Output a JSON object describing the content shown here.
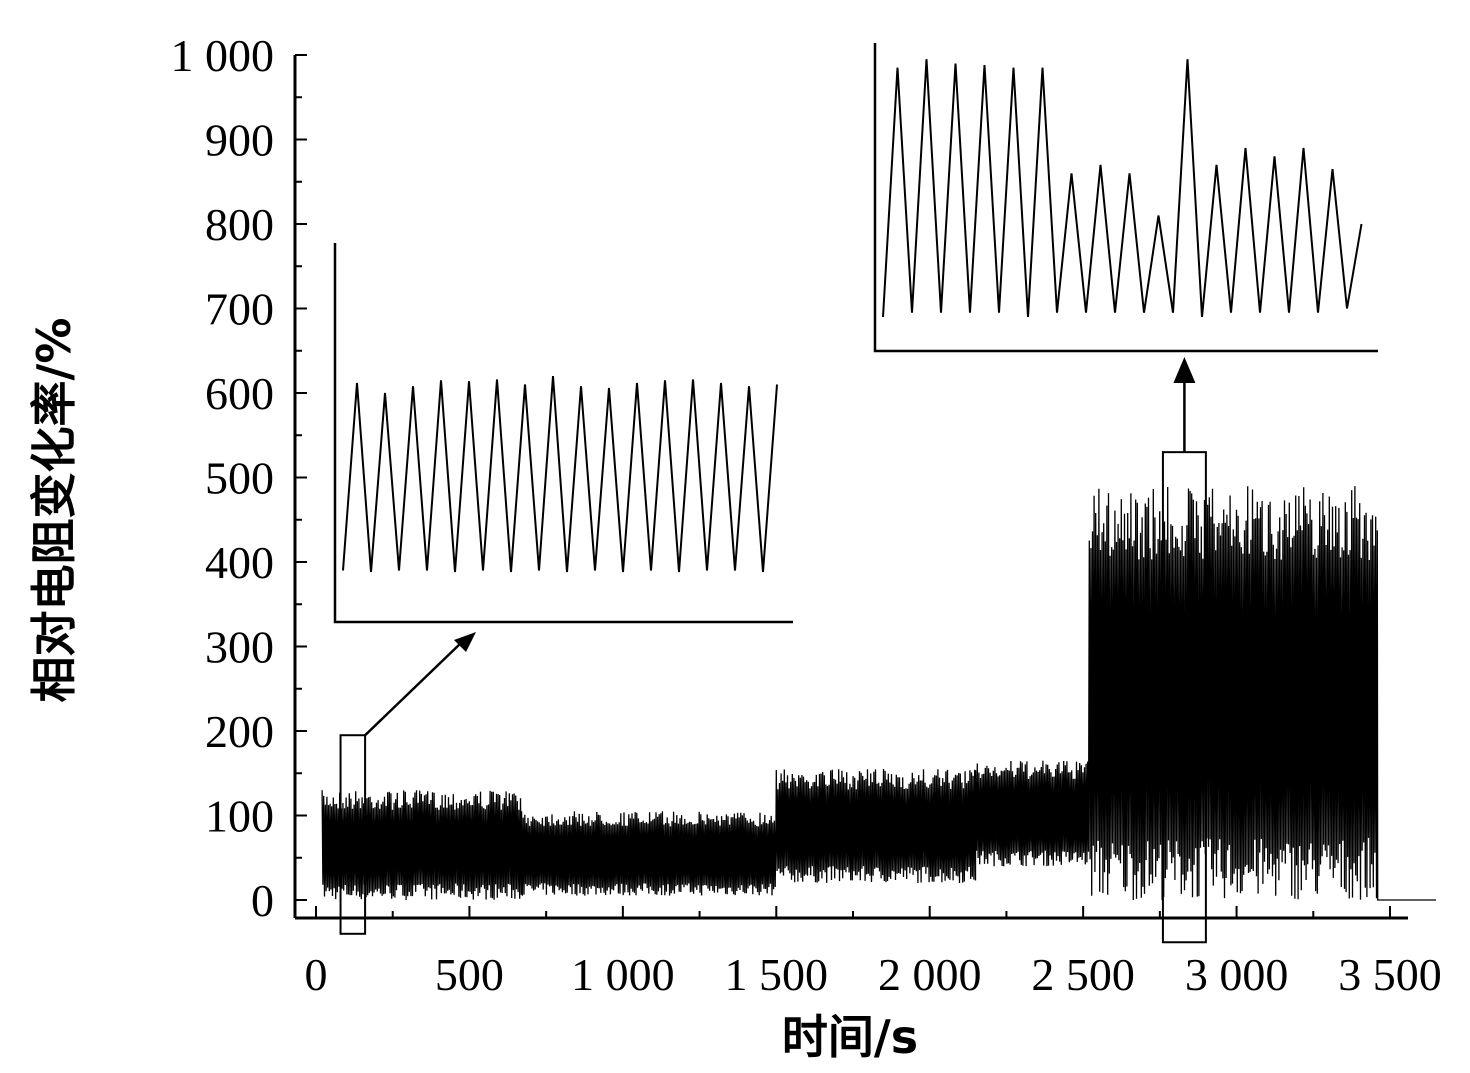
{
  "chart_data": {
    "type": "line",
    "xlabel": "时间/s",
    "ylabel": "相对电阻变化率/%",
    "xlim": [
      0,
      3500
    ],
    "ylim": [
      0,
      1000
    ],
    "x_ticks": [
      {
        "value": 0,
        "label": "0"
      },
      {
        "value": 500,
        "label": "500"
      },
      {
        "value": 1000,
        "label": "1 000"
      },
      {
        "value": 1500,
        "label": "1 500"
      },
      {
        "value": 2000,
        "label": "2 000"
      },
      {
        "value": 2500,
        "label": "2 500"
      },
      {
        "value": 3000,
        "label": "3 000"
      },
      {
        "value": 3500,
        "label": "3 500"
      }
    ],
    "y_ticks": [
      {
        "value": 0,
        "label": "0"
      },
      {
        "value": 100,
        "label": "100"
      },
      {
        "value": 200,
        "label": "200"
      },
      {
        "value": 300,
        "label": "300"
      },
      {
        "value": 400,
        "label": "400"
      },
      {
        "value": 500,
        "label": "500"
      },
      {
        "value": 600,
        "label": "600"
      },
      {
        "value": 700,
        "label": "700"
      },
      {
        "value": 800,
        "label": "800"
      },
      {
        "value": 900,
        "label": "900"
      },
      {
        "value": 1000,
        "label": "1 000"
      }
    ],
    "grid": false,
    "segments": [
      {
        "x_start": 20,
        "x_end": 670,
        "min": 0,
        "max": 130
      },
      {
        "x_start": 670,
        "x_end": 1500,
        "min": 5,
        "max": 105
      },
      {
        "x_start": 1500,
        "x_end": 2150,
        "min": 20,
        "max": 155
      },
      {
        "x_start": 2150,
        "x_end": 2520,
        "min": 40,
        "max": 165
      },
      {
        "x_start": 2520,
        "x_end": 3460,
        "min": 0,
        "max": 490
      }
    ],
    "after_end": {
      "x_start": 3460,
      "x_end": 3650,
      "value": 0
    },
    "insets": [
      {
        "zoom_region": {
          "x_start": 80,
          "x_end": 160,
          "y_low": -40,
          "y_high": 195
        },
        "peaks": [
          612,
          600,
          608,
          615,
          614,
          616,
          610,
          620,
          608,
          606,
          612,
          615,
          616,
          612,
          608,
          610
        ],
        "troughs": [
          390,
          388,
          390,
          390,
          388,
          390,
          388,
          390,
          388,
          390,
          388,
          390,
          388,
          390,
          390,
          388
        ]
      },
      {
        "zoom_region": {
          "x_start": 2760,
          "x_end": 2900,
          "y_low": -50,
          "y_high": 530
        },
        "peaks": [
          985,
          995,
          990,
          988,
          985,
          985,
          860,
          870,
          860,
          810,
          995,
          870,
          890,
          880,
          890,
          865,
          800
        ],
        "troughs": [
          690,
          695,
          695,
          695,
          695,
          690,
          695,
          695,
          695,
          695,
          695,
          690,
          695,
          695,
          695,
          695,
          700
        ]
      }
    ]
  }
}
